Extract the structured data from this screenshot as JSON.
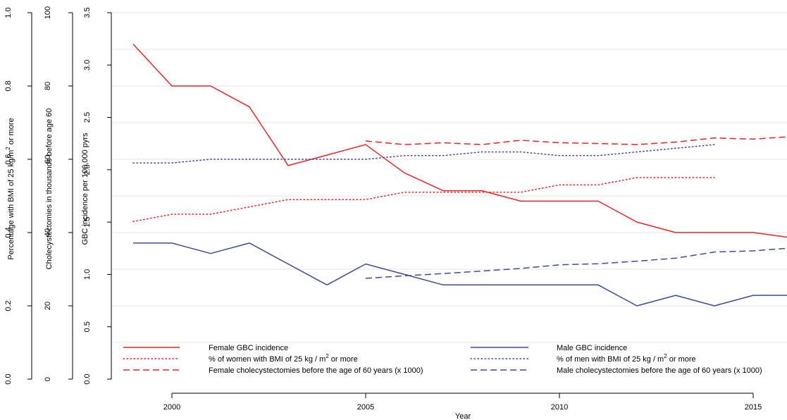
{
  "chart_data": {
    "type": "line",
    "x": [
      1999,
      2000,
      2001,
      2002,
      2003,
      2004,
      2005,
      2006,
      2007,
      2008,
      2009,
      2010,
      2011,
      2012,
      2013,
      2014,
      2015,
      2016
    ],
    "xlabel": "Year",
    "xlim": [
      1997.85,
      2016
    ],
    "x_ticks": [
      2000,
      2005,
      2010,
      2015
    ],
    "grid": "horizontal",
    "y_axes": [
      {
        "id": "bmi",
        "label_parts": [
          "Percentage with BMI of 25 kg/m",
          "2",
          " or more"
        ],
        "range": [
          0,
          1.0
        ],
        "ticks": [
          "0.0",
          "0.2",
          "0.4",
          "0.6",
          "0.8",
          "1.0"
        ],
        "tick_values": [
          0,
          0.2,
          0.4,
          0.6,
          0.8,
          1.0
        ]
      },
      {
        "id": "chole",
        "label": "Cholecystectomies in thousands before age 60",
        "range": [
          0,
          100
        ],
        "ticks": [
          "0",
          "20",
          "40",
          "60",
          "80",
          "100"
        ],
        "tick_values": [
          0,
          20,
          40,
          60,
          80,
          100
        ]
      },
      {
        "id": "gbc",
        "label": "GBC incidence per 100,000 pyrs",
        "range": [
          0,
          3.5
        ],
        "ticks": [
          "0.0",
          "0.5",
          "1.0",
          "1.5",
          "2.0",
          "2.5",
          "3.0",
          "3.5"
        ],
        "tick_values": [
          0,
          0.5,
          1.0,
          1.5,
          2.0,
          2.5,
          3.0,
          3.5
        ]
      }
    ],
    "series": [
      {
        "name": "Female GBC incidence",
        "color": "#e8242a",
        "style": "solid",
        "axis": "gbc",
        "x": [
          1999,
          2000,
          2001,
          2002,
          2003,
          2004,
          2005,
          2006,
          2007,
          2008,
          2009,
          2010,
          2011,
          2012,
          2013,
          2014,
          2015,
          2016
        ],
        "values": [
          3.2,
          2.8,
          2.8,
          2.6,
          2.04,
          2.14,
          2.24,
          1.97,
          1.8,
          1.8,
          1.7,
          1.7,
          1.7,
          1.5,
          1.4,
          1.4,
          1.4,
          1.35
        ]
      },
      {
        "name": "% of women with BMI of 25 kg / m2 or more",
        "legend_parts": [
          "% of women with BMI of 25 kg / m",
          "2",
          " or more"
        ],
        "color": "#e8242a",
        "style": "dotted",
        "axis": "bmi",
        "x": [
          1999,
          2000,
          2001,
          2002,
          2003,
          2004,
          2005,
          2006,
          2007,
          2008,
          2009,
          2010,
          2011,
          2012,
          2013,
          2014
        ],
        "values": [
          0.43,
          0.45,
          0.45,
          0.47,
          0.49,
          0.49,
          0.49,
          0.51,
          0.51,
          0.51,
          0.51,
          0.53,
          0.53,
          0.55,
          0.55,
          0.55
        ]
      },
      {
        "name": "Female cholecystectomies before the age of 60 years (x 1000)",
        "color": "#e8242a",
        "style": "dashed",
        "axis": "chole",
        "x": [
          2005,
          2006,
          2007,
          2008,
          2009,
          2010,
          2011,
          2012,
          2013,
          2014,
          2015,
          2016
        ],
        "values": [
          65,
          64,
          64.5,
          64,
          65.2,
          64.5,
          64.3,
          64,
          64.7,
          65.8,
          65.5,
          66.2
        ]
      },
      {
        "name": "Male GBC incidence",
        "color": "#3c4a9c",
        "style": "solid",
        "axis": "gbc",
        "x": [
          1999,
          2000,
          2001,
          2002,
          2003,
          2004,
          2005,
          2006,
          2007,
          2008,
          2009,
          2010,
          2011,
          2012,
          2013,
          2014,
          2015,
          2016
        ],
        "values": [
          1.3,
          1.3,
          1.2,
          1.3,
          1.1,
          0.9,
          1.1,
          1.0,
          0.9,
          0.9,
          0.9,
          0.9,
          0.9,
          0.7,
          0.8,
          0.7,
          0.8,
          0.8
        ]
      },
      {
        "name": "% of men with BMI of 25 kg / m2 or more",
        "legend_parts": [
          "% of men with BMI of 25 kg / m",
          "2",
          " or more"
        ],
        "color": "#3c4a9c",
        "style": "dotted",
        "axis": "bmi",
        "x": [
          1999,
          2000,
          2001,
          2002,
          2003,
          2004,
          2005,
          2006,
          2007,
          2008,
          2009,
          2010,
          2011,
          2012,
          2013,
          2014
        ],
        "values": [
          0.59,
          0.59,
          0.6,
          0.6,
          0.6,
          0.6,
          0.6,
          0.61,
          0.61,
          0.62,
          0.62,
          0.61,
          0.61,
          0.62,
          0.63,
          0.64
        ]
      },
      {
        "name": "Male cholecystectomies before the age of 60 years (x 1000)",
        "color": "#3c4a9c",
        "style": "dashed",
        "axis": "chole",
        "x": [
          2005,
          2006,
          2007,
          2008,
          2009,
          2010,
          2011,
          2012,
          2013,
          2014,
          2015,
          2016
        ],
        "values": [
          27.5,
          28.2,
          28.8,
          29.5,
          30.2,
          31.2,
          31.5,
          32.2,
          33,
          34.7,
          35,
          35.8
        ]
      }
    ],
    "legend": {
      "placement": "bottom",
      "columns": [
        [
          "Female GBC incidence",
          "% of women with BMI of 25 kg / m2 or more",
          "Female cholecystectomies before the age of 60 years (x 1000)"
        ],
        [
          "Male GBC incidence",
          "% of men with BMI of 25 kg / m2 or more",
          "Male cholecystectomies before the age of 60 years (x 1000)"
        ]
      ]
    }
  }
}
